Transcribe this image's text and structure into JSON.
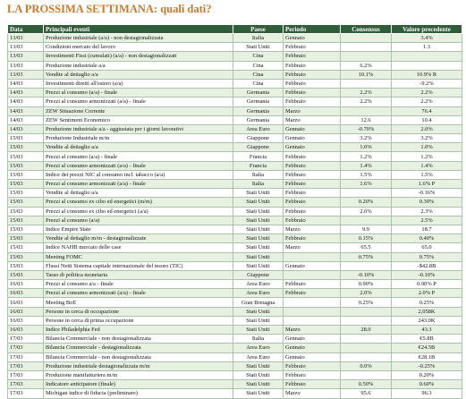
{
  "title": "LA PROSSIMA SETTIMANA: quali dati?",
  "table": {
    "header": [
      "Data",
      "Principali eventi",
      "Paese",
      "Periodo",
      "Consensus",
      "Valore precedente"
    ],
    "rows": [
      [
        "13/03",
        "Produzione industriale (a/a) - non destagionalizzata",
        "Italia",
        "Gennaio",
        null,
        "3.4%"
      ],
      [
        "13/03",
        "Condizioni mercato del lavoro",
        "Stati Uniti",
        "Febbraio",
        null,
        "1.3"
      ],
      [
        "13/03",
        "Investimenti Fissi (cumulati) (a/a) - non destagionalizzati",
        "Cina",
        "Febbraio",
        null,
        null
      ],
      [
        "13/03",
        "Produzione industriale a/a",
        "Cina",
        "Febbraio",
        "6.2%",
        null
      ],
      [
        "13/03",
        "Vendite al dettaglio a/a",
        "Cina",
        "Febbraio",
        "10.1%",
        "10.9% R"
      ],
      [
        "14/03",
        "Investimenti diretti all'estero (a/a)",
        "Cina",
        "Febbraio",
        null,
        "-9.2%"
      ],
      [
        "14/03",
        "Prezzi al consumo (a/a) - finale",
        "Germania",
        "Febbraio",
        "2.2%",
        "2.2%"
      ],
      [
        "14/03",
        "Prezzi al consumo armonizzati (a/a) - finale",
        "Germania",
        "Febbraio",
        "2.2%",
        "2.2%"
      ],
      [
        "14/03",
        "ZEW Situazione Corrente",
        "Germania",
        "Marzo",
        null,
        "76.4"
      ],
      [
        "14/03",
        "ZEW Sentiment Economico",
        "Germania",
        "Marzo",
        "12.6",
        "10.4"
      ],
      [
        "14/03",
        "Produzione industriale a/a - aggiustata per i giorni lavorativi",
        "Area Euro",
        "Gennaio",
        "-0.70%",
        "2.0%"
      ],
      [
        "15/03",
        "Produzione Industriale m/m",
        "Giappone",
        "Gennaio",
        "3.2%",
        "3.2%"
      ],
      [
        "15/03",
        "Vendite al dettaglio a/a",
        "Giappone",
        "Gennaio",
        "1.0%",
        "1.0%"
      ],
      [
        "15/03",
        "Prezzi al consumo (a/a) - finale",
        "Francia",
        "Febbraio",
        "1.2%",
        "1.2%"
      ],
      [
        "15/03",
        "Prezzi al consumo armonizzati (a/a) - finale",
        "Francia",
        "Febbraio",
        "1.4%",
        "1.4%"
      ],
      [
        "15/03",
        "Indice dei prezzi NIC al consumo incl. tabacco (a/a)",
        "Italia",
        "Febbraio",
        "1.5%",
        "1.5%"
      ],
      [
        "15/03",
        "Prezzi al consumo armonizzati (a/a) - finale",
        "Italia",
        "Febbraio",
        "1.6%",
        "1.6% P"
      ],
      [
        "15/03",
        "Vendite al dettaglio a/a",
        "Stati Uniti",
        "Febbraio",
        null,
        "-0.16%"
      ],
      [
        "15/03",
        "Prezzi al consumo ex cibo ed energetici (m/m)",
        "Stati Uniti",
        "Febbraio",
        "0.20%",
        "0.30%"
      ],
      [
        "15/03",
        "Prezzi al consumo ex cibo ed energetici (a/a)",
        "Stati Uniti",
        "Febbraio",
        "2.6%",
        "2.3%"
      ],
      [
        "15/03",
        "Prezzi al consumo (a/a)",
        "Stati Uniti",
        "Febbraio",
        null,
        "2.5%"
      ],
      [
        "15/03",
        "Indice Empire State",
        "Stati Uniti",
        "Marzo",
        "9.9",
        "18.7"
      ],
      [
        "15/03",
        "Vendite al dettaglio m/m - destagionalizzate",
        "Stati Uniti",
        "Febbraio",
        "0.15%",
        "0.40%"
      ],
      [
        "15/03",
        "Indice NAHB mercato delle case",
        "Stati Uniti",
        "Marzo",
        "65.5",
        "65.0"
      ],
      [
        "15/03",
        "Meeting FOMC",
        "Stati Uniti",
        null,
        "0.75%",
        "0.75%"
      ],
      [
        "15/03",
        "Flussi Netti Sistema capitale internazionale del tesoro (TIC)",
        "Stati Uniti",
        "Gennaio",
        null,
        "-$42.8B"
      ],
      [
        "15/03",
        "Tasso di politica monetaria",
        "Giappone",
        null,
        "-0.10%",
        "-0.10%"
      ],
      [
        "16/03",
        "Prezzi al consumo a/a - finale",
        "Area Euro",
        "Febbraio",
        "0.90%",
        "0.90% P"
      ],
      [
        "16/03",
        "Prezzi al consumo armonizzati (a/a) - finale",
        "Area Euro",
        "Febbraio",
        "2.0%",
        "2.0% P"
      ],
      [
        "16/03",
        "Meeting BoE",
        "Gran Bretagna",
        null,
        "0.25%",
        "0.25%"
      ],
      [
        "16/03",
        "Persone in cerca di occupazione",
        "Stati Uniti",
        null,
        null,
        "2,058K"
      ],
      [
        "16/03",
        "Persone in cerca di prima occupazione",
        "Stati Uniti",
        null,
        null,
        "243.0K"
      ],
      [
        "16/03",
        "Indice Philadelphia Fed",
        "Stati Uniti",
        "Marzo",
        "28.0",
        "43.3"
      ],
      [
        "17/03",
        "Bilancia Commerciale - non destagionalizzata",
        "Italia",
        "Gennaio",
        null,
        "€5.8B"
      ],
      [
        "17/03",
        "Bilancia Commerciale - destagionalizzata",
        "Area Euro",
        "Gennaio",
        null,
        "€24.5B"
      ],
      [
        "17/03",
        "Bilancia Commerciale - non destagionalizzata",
        "Area Euro",
        "Gennaio",
        null,
        "€28.1B"
      ],
      [
        "17/03",
        "Produzione industriale destagionalizzata m/m",
        "Stati Uniti",
        "Febbraio",
        "0.0%",
        "-0.25%"
      ],
      [
        "17/03",
        "Produzione manifatturiera m/m",
        "Stati Uniti",
        "Febbraio",
        null,
        "0.20%"
      ],
      [
        "17/03",
        "Indicatore anticipatore (finale)",
        "Stati Uniti",
        "Febbraio",
        "0.50%",
        "0.60%"
      ],
      [
        "17/03",
        "Michigan indice di fiducia (preliminare)",
        "Stati Uniti",
        "Marzo",
        "95.6",
        "96.3"
      ]
    ]
  }
}
